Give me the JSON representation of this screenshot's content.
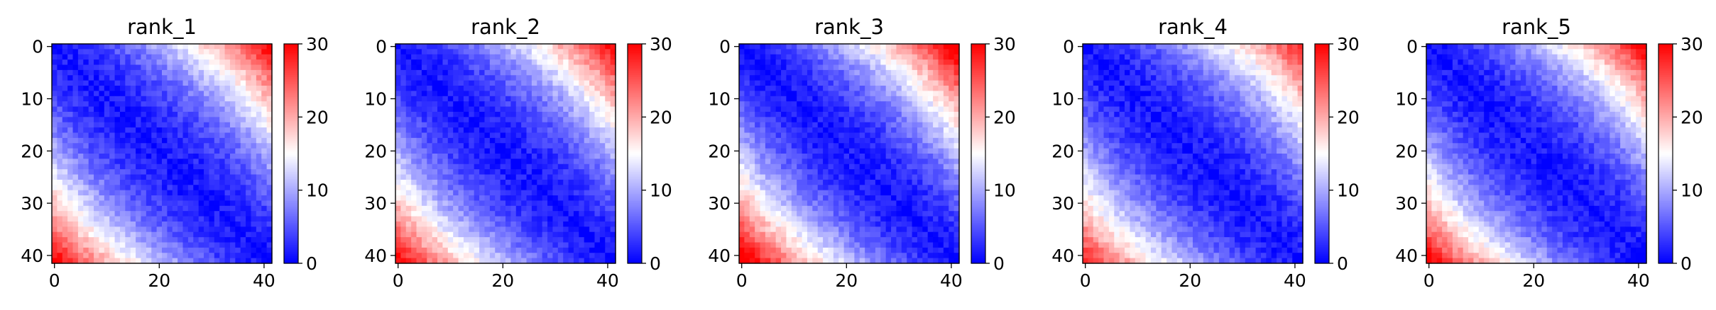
{
  "chart_data": {
    "type": "heatmap",
    "layout": "1 row x 5 panels",
    "colormap": {
      "name": "bwr",
      "low": "#0000ff",
      "mid": "#ffffff",
      "high": "#ff0000"
    },
    "color_range": [
      0,
      30
    ],
    "colorbar_ticks": [
      0,
      10,
      20,
      30
    ],
    "matrix_size": 42,
    "x_ticks": [
      0,
      20,
      40
    ],
    "y_ticks": [
      0,
      10,
      20,
      30,
      40
    ],
    "y_axis_inverted": true,
    "grid": false,
    "description": "Symmetric pairwise distance matrices: low values (blue) along the diagonal, rising to ~30 (red) at the off-diagonal corners.",
    "panels": [
      {
        "title": "rank_1",
        "corner_value": 30,
        "spread": 22
      },
      {
        "title": "rank_2",
        "corner_value": 30,
        "spread": 22
      },
      {
        "title": "rank_3",
        "corner_value": 30,
        "spread": 21
      },
      {
        "title": "rank_4",
        "corner_value": 30,
        "spread": 23
      },
      {
        "title": "rank_5",
        "corner_value": 30,
        "spread": 22
      }
    ]
  }
}
